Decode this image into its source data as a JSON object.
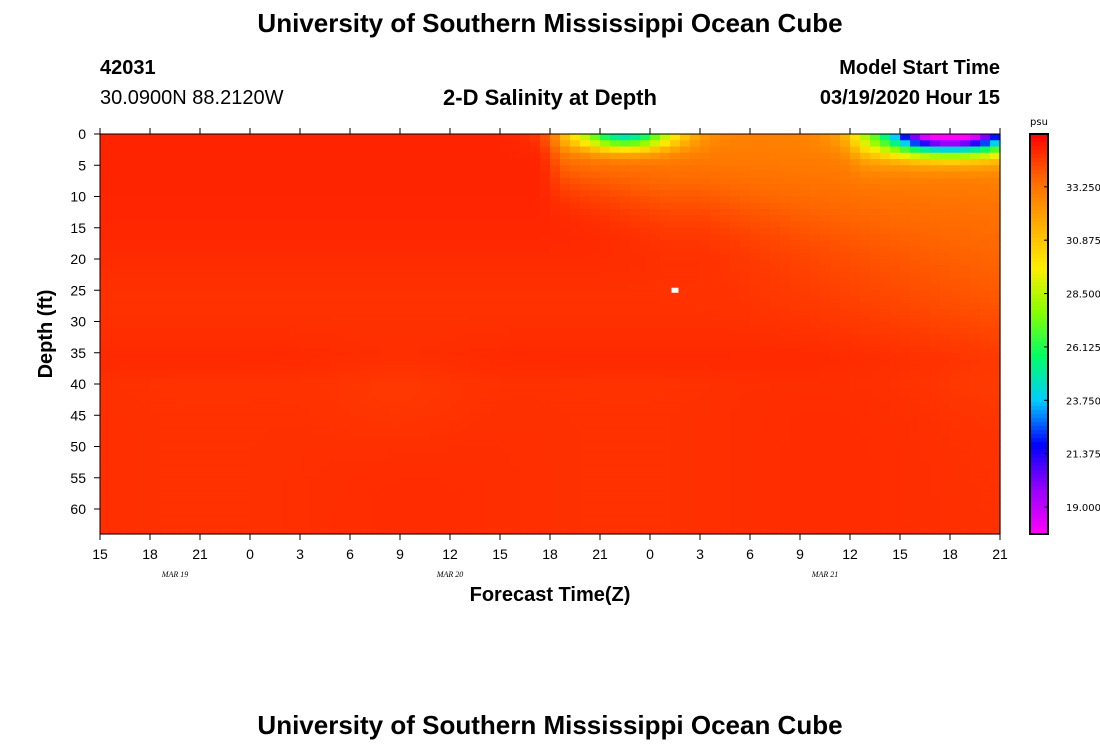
{
  "page": {
    "title_top": "University of Southern Mississippi Ocean Cube",
    "title_bottom": "University of Southern Mississippi Ocean Cube",
    "station_id": "42031",
    "station_coords": "30.0900N 88.2120W",
    "model_start_label": "Model Start Time",
    "model_start_value": "03/19/2020 Hour 15"
  },
  "chart_data": {
    "type": "heatmap",
    "title": "2-D Salinity at Depth",
    "xlabel": "Forecast Time(Z)",
    "ylabel": "Depth (ft)",
    "x_ticks": [
      "15",
      "18",
      "21",
      "0",
      "3",
      "6",
      "9",
      "12",
      "15",
      "18",
      "21",
      "0",
      "3",
      "6",
      "9",
      "12",
      "15",
      "18",
      "21"
    ],
    "date_labels": [
      {
        "text": "MAR 19",
        "tick_index": 1.5
      },
      {
        "text": "MAR 20",
        "tick_index": 7
      },
      {
        "text": "MAR 21",
        "tick_index": 14.5
      }
    ],
    "x_range_hours": [
      0,
      54
    ],
    "y_ticks": [
      0,
      5,
      10,
      15,
      20,
      25,
      30,
      35,
      40,
      45,
      50,
      55,
      60
    ],
    "ylim": [
      0,
      64
    ],
    "colorbar": {
      "unit": "psu",
      "ticks": [
        "33.250",
        "30.875",
        "28.500",
        "26.125",
        "23.750",
        "21.375",
        "19.000"
      ],
      "range": [
        17.8,
        35.6
      ],
      "colors": [
        "#ff00ff",
        "#9900ff",
        "#0000ff",
        "#00ccff",
        "#00ff66",
        "#88ff00",
        "#ffee00",
        "#ffaa00",
        "#ff6600",
        "#ff0000"
      ]
    },
    "marker": {
      "forecast_hour": 34.5,
      "depth_ft": 25
    },
    "fields": {
      "salinity_base": 34.9,
      "surface_events": [
        {
          "name": "fresh lens MAR 20 21Z",
          "center_hour": 31.5,
          "width_hours": 3,
          "min_salinity": 26.5,
          "depth_ft": 2.5
        },
        {
          "name": "fresh lens MAR 21 15-21Z",
          "center_hour": 51,
          "width_hours": 4,
          "min_salinity": 20.0,
          "depth_ft": 3
        }
      ]
    }
  }
}
